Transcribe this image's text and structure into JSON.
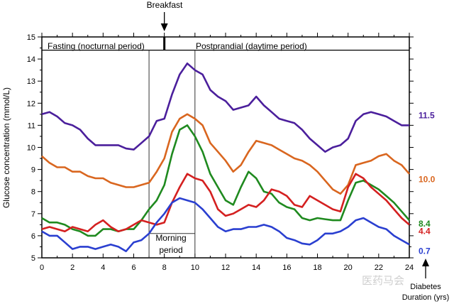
{
  "chart_data": {
    "type": "line",
    "title": "",
    "xlabel": "",
    "ylabel": "Glucose concentration (mmol/L)",
    "xlim": [
      0,
      24
    ],
    "ylim": [
      5,
      15
    ],
    "x_ticks": [
      "0",
      "2",
      "4",
      "6",
      "8",
      "10",
      "12",
      "14",
      "16",
      "18",
      "20",
      "22",
      "24"
    ],
    "y_ticks": [
      "5",
      "6",
      "7",
      "8",
      "9",
      "10",
      "11",
      "12",
      "13",
      "14",
      "15"
    ],
    "grid": false,
    "annotations": {
      "breakfast": "Breakfast",
      "breakfast_time": 8,
      "fasting": "Fasting (nocturnal period)",
      "postprandial": "Postprandial (daytime period)",
      "morning": [
        "Morning",
        "period"
      ],
      "morning_range": [
        7,
        10
      ],
      "legend_title": [
        "Diabetes",
        "Duration (yrs)"
      ]
    },
    "x": [
      0,
      0.5,
      1,
      1.5,
      2,
      2.5,
      3,
      3.5,
      4,
      4.5,
      5,
      5.5,
      6,
      6.5,
      7,
      7.5,
      8,
      8.5,
      9,
      9.5,
      10,
      10.5,
      11,
      11.5,
      12,
      12.5,
      13,
      13.5,
      14,
      14.5,
      15,
      15.5,
      16,
      16.5,
      17,
      17.5,
      18,
      18.5,
      19,
      19.5,
      20,
      20.5,
      21,
      21.5,
      22,
      22.5,
      23,
      23.5,
      24
    ],
    "series": [
      {
        "name": "11.5",
        "color": "#4b1f9c",
        "values": [
          11.5,
          11.6,
          11.4,
          11.1,
          11.0,
          10.8,
          10.4,
          10.1,
          10.1,
          10.1,
          10.1,
          9.95,
          9.9,
          10.2,
          10.5,
          11.2,
          11.3,
          12.4,
          13.3,
          13.8,
          13.5,
          13.3,
          12.6,
          12.3,
          12.1,
          11.7,
          11.8,
          11.9,
          12.3,
          11.9,
          11.6,
          11.3,
          11.2,
          11.1,
          10.8,
          10.4,
          10.1,
          9.8,
          10.0,
          10.1,
          10.4,
          11.2,
          11.5,
          11.6,
          11.5,
          11.4,
          11.2,
          11.0,
          11.0
        ]
      },
      {
        "name": "10.0",
        "color": "#d9661f",
        "values": [
          9.6,
          9.3,
          9.1,
          9.1,
          8.9,
          8.9,
          8.7,
          8.6,
          8.6,
          8.4,
          8.3,
          8.2,
          8.2,
          8.3,
          8.4,
          8.9,
          9.5,
          10.7,
          11.3,
          11.5,
          11.3,
          11.0,
          10.2,
          9.8,
          9.4,
          8.9,
          9.2,
          9.8,
          10.3,
          10.2,
          10.1,
          9.9,
          9.7,
          9.5,
          9.4,
          9.2,
          8.9,
          8.5,
          8.1,
          7.9,
          8.3,
          9.2,
          9.3,
          9.4,
          9.6,
          9.7,
          9.4,
          9.2,
          8.8
        ]
      },
      {
        "name": "8.4",
        "color": "#1f8a1f",
        "values": [
          6.8,
          6.6,
          6.6,
          6.5,
          6.3,
          6.2,
          6.0,
          6.0,
          6.3,
          6.3,
          6.2,
          6.3,
          6.3,
          6.7,
          7.2,
          7.6,
          8.3,
          9.7,
          10.8,
          11.0,
          10.5,
          9.8,
          8.8,
          8.2,
          7.6,
          7.4,
          8.2,
          8.9,
          8.6,
          8.0,
          7.9,
          7.5,
          7.3,
          7.2,
          6.8,
          6.7,
          6.8,
          6.75,
          6.7,
          6.7,
          7.6,
          8.4,
          8.5,
          8.3,
          8.1,
          7.8,
          7.5,
          7.1,
          6.7
        ]
      },
      {
        "name": "4.4",
        "color": "#d42020",
        "values": [
          6.3,
          6.4,
          6.3,
          6.2,
          6.4,
          6.3,
          6.2,
          6.5,
          6.7,
          6.4,
          6.2,
          6.3,
          6.5,
          6.7,
          6.6,
          6.5,
          6.6,
          7.5,
          8.2,
          8.8,
          8.6,
          8.5,
          8.0,
          7.2,
          6.9,
          7.0,
          7.2,
          7.4,
          7.3,
          7.6,
          8.1,
          8.0,
          7.8,
          7.4,
          7.3,
          7.8,
          7.6,
          7.4,
          7.2,
          7.1,
          8.2,
          8.8,
          8.6,
          8.2,
          7.9,
          7.6,
          7.2,
          6.8,
          6.5
        ]
      },
      {
        "name": "0.7",
        "color": "#2a3fd0",
        "values": [
          6.2,
          6.0,
          6.0,
          5.7,
          5.4,
          5.5,
          5.5,
          5.4,
          5.5,
          5.6,
          5.5,
          5.3,
          5.7,
          5.8,
          6.1,
          6.6,
          7.0,
          7.5,
          7.7,
          7.6,
          7.5,
          7.2,
          6.8,
          6.4,
          6.2,
          6.3,
          6.3,
          6.4,
          6.4,
          6.5,
          6.4,
          6.2,
          5.9,
          5.8,
          5.65,
          5.6,
          5.8,
          6.1,
          6.1,
          6.2,
          6.4,
          6.7,
          6.8,
          6.6,
          6.4,
          6.3,
          6.0,
          5.8,
          5.6
        ]
      }
    ]
  },
  "watermark": "医药马会"
}
